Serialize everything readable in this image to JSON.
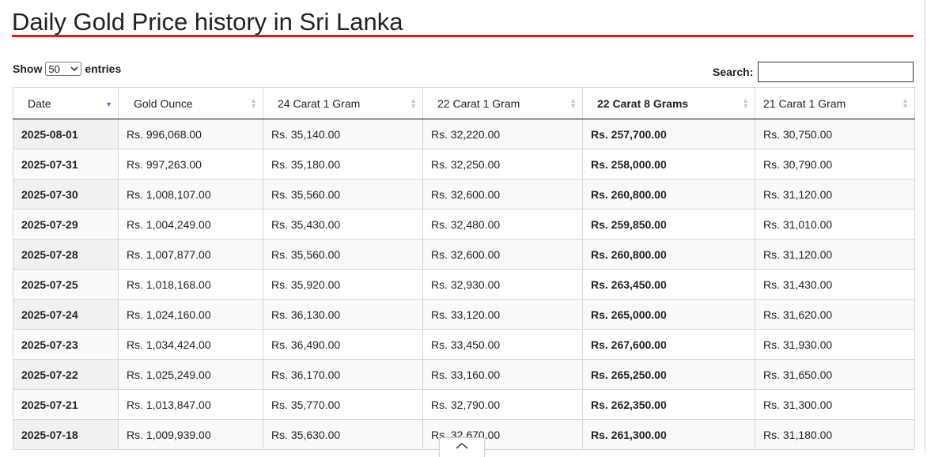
{
  "page": {
    "title": "Daily Gold Price history in Sri Lanka",
    "accent_color": "#e01b1b"
  },
  "controls": {
    "show_label": "Show",
    "entries_value": "50",
    "entries_label": "entries",
    "search_label": "Search:",
    "search_value": ""
  },
  "table": {
    "columns": [
      {
        "label": "Date",
        "sort_icon": "sort-desc-icon",
        "active": true
      },
      {
        "label": "Gold Ounce",
        "sort_icon": "sort-both-icon",
        "active": false
      },
      {
        "label": "24 Carat 1 Gram",
        "sort_icon": "sort-both-icon",
        "active": false
      },
      {
        "label": "22 Carat 1 Gram",
        "sort_icon": "sort-both-icon",
        "active": false
      },
      {
        "label": "22 Carat 8 Grams",
        "sort_icon": "sort-both-icon",
        "active": false
      },
      {
        "label": "21 Carat 1 Gram",
        "sort_icon": "sort-both-icon",
        "active": false
      }
    ],
    "rows": [
      [
        "2025-08-01",
        "Rs. 996,068.00",
        "Rs. 35,140.00",
        "Rs. 32,220.00",
        "Rs. 257,700.00",
        "Rs. 30,750.00"
      ],
      [
        "2025-07-31",
        "Rs. 997,263.00",
        "Rs. 35,180.00",
        "Rs. 32,250.00",
        "Rs. 258,000.00",
        "Rs. 30,790.00"
      ],
      [
        "2025-07-30",
        "Rs. 1,008,107.00",
        "Rs. 35,560.00",
        "Rs. 32,600.00",
        "Rs. 260,800.00",
        "Rs. 31,120.00"
      ],
      [
        "2025-07-29",
        "Rs. 1,004,249.00",
        "Rs. 35,430.00",
        "Rs. 32,480.00",
        "Rs. 259,850.00",
        "Rs. 31,010.00"
      ],
      [
        "2025-07-28",
        "Rs. 1,007,877.00",
        "Rs. 35,560.00",
        "Rs. 32,600.00",
        "Rs. 260,800.00",
        "Rs. 31,120.00"
      ],
      [
        "2025-07-25",
        "Rs. 1,018,168.00",
        "Rs. 35,920.00",
        "Rs. 32,930.00",
        "Rs. 263,450.00",
        "Rs. 31,430.00"
      ],
      [
        "2025-07-24",
        "Rs. 1,024,160.00",
        "Rs. 36,130.00",
        "Rs. 33,120.00",
        "Rs. 265,000.00",
        "Rs. 31,620.00"
      ],
      [
        "2025-07-23",
        "Rs. 1,034,424.00",
        "Rs. 36,490.00",
        "Rs. 33,450.00",
        "Rs. 267,600.00",
        "Rs. 31,930.00"
      ],
      [
        "2025-07-22",
        "Rs. 1,025,249.00",
        "Rs. 36,170.00",
        "Rs. 33,160.00",
        "Rs. 265,250.00",
        "Rs. 31,650.00"
      ],
      [
        "2025-07-21",
        "Rs. 1,013,847.00",
        "Rs. 35,770.00",
        "Rs. 32,790.00",
        "Rs. 262,350.00",
        "Rs. 31,300.00"
      ],
      [
        "2025-07-18",
        "Rs. 1,009,939.00",
        "Rs. 35,630.00",
        "Rs. 32,670.00",
        "Rs. 261,300.00",
        "Rs. 31,180.00"
      ]
    ]
  },
  "scroll_tab": {
    "icon": "chevron-up-icon"
  }
}
